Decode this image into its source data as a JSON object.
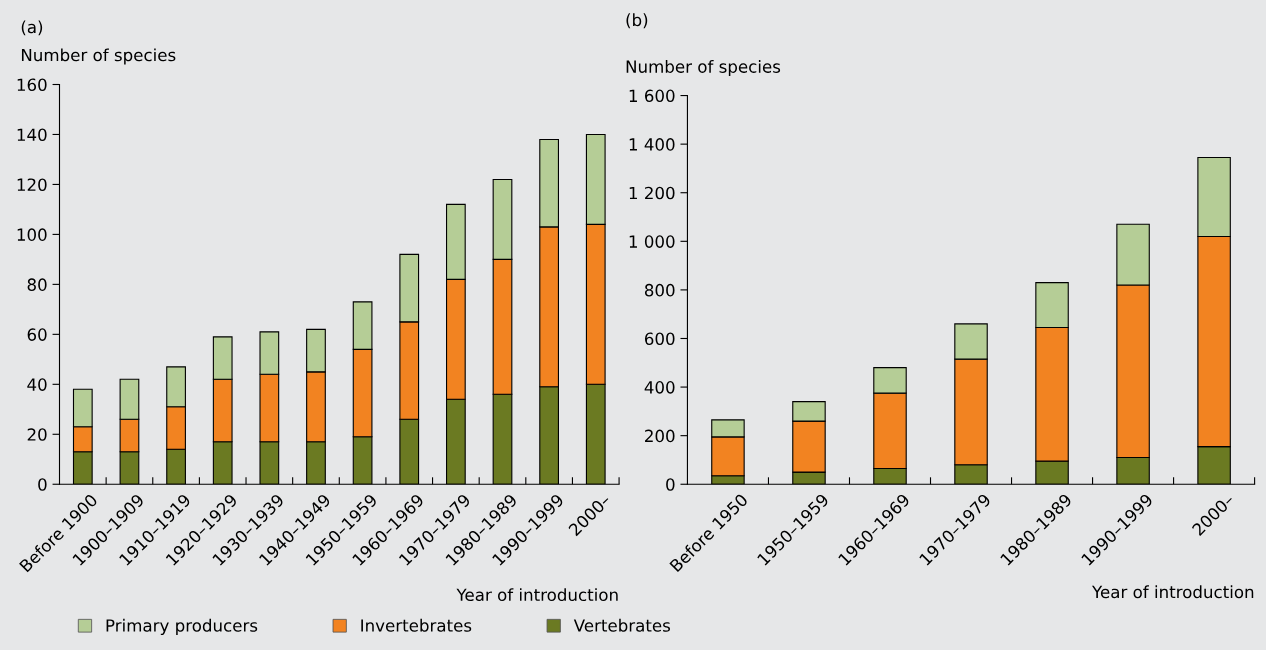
{
  "chart_data": [
    {
      "type": "bar",
      "stacked": true,
      "title": "(a)",
      "ylabel": "Number of species",
      "xlabel": "Year of introduction",
      "categories": [
        "Before 1900",
        "1900–1909",
        "1910–1919",
        "1920–1929",
        "1930–1939",
        "1940–1949",
        "1950–1959",
        "1960–1969",
        "1970–1979",
        "1980–1989",
        "1990–1999",
        "2000–"
      ],
      "series": [
        {
          "name": "Vertebrates",
          "color": "#6b7a22",
          "values": [
            13,
            13,
            14,
            17,
            17,
            17,
            19,
            26,
            34,
            36,
            39,
            40
          ]
        },
        {
          "name": "Invertebrates",
          "color": "#f28321",
          "values": [
            10,
            13,
            17,
            25,
            27,
            28,
            35,
            39,
            48,
            54,
            64,
            64
          ]
        },
        {
          "name": "Primary producers",
          "color": "#b5cd96",
          "values": [
            15,
            16,
            16,
            17,
            17,
            17,
            19,
            27,
            30,
            32,
            35,
            36
          ]
        }
      ],
      "ylim": [
        0,
        160
      ],
      "yticks": [
        0,
        20,
        40,
        60,
        80,
        100,
        120,
        140,
        160
      ],
      "grid": false,
      "legend": "bottom"
    },
    {
      "type": "bar",
      "stacked": true,
      "title": "(b)",
      "ylabel": "Number of species",
      "xlabel": "Year of introduction",
      "categories": [
        "Before 1950",
        "1950–1959",
        "1960–1969",
        "1970–1979",
        "1980–1989",
        "1990–1999",
        "2000–"
      ],
      "series": [
        {
          "color": "#6b7a22",
          "values": [
            35,
            50,
            65,
            80,
            95,
            110,
            155
          ]
        },
        {
          "color": "#f28321",
          "values": [
            160,
            210,
            310,
            435,
            550,
            710,
            865
          ]
        },
        {
          "color": "#b5cd96",
          "values": [
            70,
            80,
            105,
            145,
            185,
            250,
            325
          ]
        }
      ],
      "ylim": [
        0,
        1600
      ],
      "yticks": [
        0,
        200,
        400,
        600,
        800,
        {
          "value": 1000,
          "label": "1 000"
        },
        {
          "value": 1200,
          "label": "1 200"
        },
        {
          "value": 1400,
          "label": "1 400"
        },
        {
          "value": 1600,
          "label": "1 600"
        }
      ],
      "grid": false,
      "legend": false
    }
  ]
}
